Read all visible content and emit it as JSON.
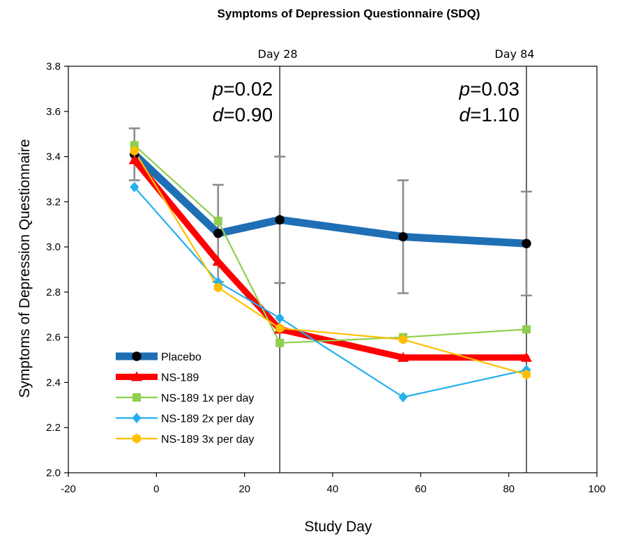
{
  "chart_data": {
    "type": "line",
    "title": "Symptoms of Depression Questionnaire (SDQ)",
    "xlabel": "Study Day",
    "ylabel": "Symptoms of Depression Questionnaire",
    "xlim": [
      -20,
      100
    ],
    "ylim": [
      2.0,
      3.8
    ],
    "xticks": [
      "-20",
      "0",
      "20",
      "40",
      "60",
      "80",
      "100"
    ],
    "yticks": [
      "2.0",
      "2.2",
      "2.4",
      "2.6",
      "2.8",
      "3.0",
      "3.2",
      "3.4",
      "3.6",
      "3.8"
    ],
    "grid": false,
    "legend_position": "bottom-left",
    "series": [
      {
        "name": "Placebo",
        "color": "#1f6fb4",
        "marker": "circle",
        "x": [
          -5,
          14,
          28,
          56,
          84
        ],
        "y": [
          3.41,
          3.06,
          3.12,
          3.045,
          3.015
        ],
        "error": [
          0.115,
          0.215,
          0.28,
          0.25,
          0.23
        ]
      },
      {
        "name": "NS-189",
        "color": "#ff0000",
        "marker": "triangle",
        "x": [
          -5,
          14,
          28,
          56,
          84
        ],
        "y": [
          3.385,
          2.935,
          2.635,
          2.51,
          2.51
        ]
      },
      {
        "name": "NS-189 1x per day",
        "color": "#8ecf4f",
        "marker": "square",
        "x": [
          -5,
          14,
          28,
          56,
          84
        ],
        "y": [
          3.45,
          3.115,
          2.575,
          2.6,
          2.635
        ]
      },
      {
        "name": "NS-189 2x per day",
        "color": "#23b0ec",
        "marker": "diamond",
        "x": [
          -5,
          14,
          28,
          56,
          84
        ],
        "y": [
          3.265,
          2.845,
          2.685,
          2.335,
          2.455
        ]
      },
      {
        "name": "NS-189 3x per day",
        "color": "#ffbf00",
        "marker": "hexagon",
        "x": [
          -5,
          14,
          28,
          56,
          84
        ],
        "y": [
          3.425,
          2.82,
          2.64,
          2.59,
          2.435
        ]
      }
    ],
    "reference_lines": [
      {
        "x": 28,
        "label": "Day 28",
        "p_text": "=0.02",
        "d_text": "=0.90"
      },
      {
        "x": 84,
        "label": "Day 84",
        "p_text": "=0.03",
        "d_text": "=1.10"
      }
    ],
    "stat_letters": {
      "p": "p",
      "d": "d"
    }
  }
}
